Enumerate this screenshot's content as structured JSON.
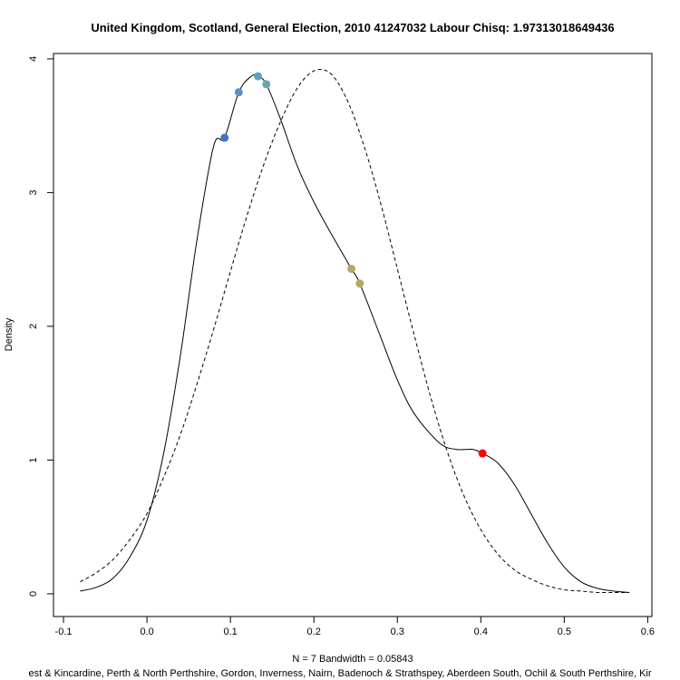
{
  "chart_data": {
    "type": "line",
    "title": "United Kingdom, Scotland, General Election, 2010 41247032 Labour Chisq: 1.97313018649436",
    "xlabel": "N = 7   Bandwidth = 0.05843",
    "subxlabel": "est & Kincardine, Perth & North Perthshire, Gordon, Inverness, Nairn, Badenoch & Strathspey, Aberdeen South, Ochil & South Perthshire, Kir",
    "ylabel": "Density",
    "xlim": [
      -0.112,
      0.605
    ],
    "ylim": [
      -0.17,
      4.04
    ],
    "xticks": [
      "-0.1",
      "0.0",
      "0.1",
      "0.2",
      "0.3",
      "0.4",
      "0.5",
      "0.6"
    ],
    "xtick_values": [
      -0.1,
      0.0,
      0.1,
      0.2,
      0.3,
      0.4,
      0.5,
      0.6
    ],
    "yticks": [
      "0",
      "1",
      "2",
      "3",
      "4"
    ],
    "ytick_values": [
      0,
      1,
      2,
      3,
      4
    ],
    "grid": false,
    "series": [
      {
        "style": "solid",
        "color": "#000000",
        "x": [
          -0.08,
          -0.06,
          -0.04,
          -0.02,
          0.0,
          0.02,
          0.04,
          0.06,
          0.08,
          0.093,
          0.11,
          0.125,
          0.133,
          0.143,
          0.16,
          0.18,
          0.2,
          0.22,
          0.245,
          0.255,
          0.28,
          0.3,
          0.32,
          0.35,
          0.37,
          0.39,
          0.402,
          0.42,
          0.44,
          0.46,
          0.48,
          0.5,
          0.52,
          0.54,
          0.56,
          0.578
        ],
        "y": [
          0.02,
          0.05,
          0.12,
          0.28,
          0.55,
          1.05,
          1.78,
          2.65,
          3.35,
          3.41,
          3.75,
          3.87,
          3.87,
          3.81,
          3.55,
          3.2,
          2.93,
          2.7,
          2.43,
          2.32,
          1.92,
          1.6,
          1.35,
          1.13,
          1.08,
          1.08,
          1.05,
          0.98,
          0.82,
          0.6,
          0.38,
          0.2,
          0.09,
          0.04,
          0.02,
          0.01
        ]
      },
      {
        "style": "dashed",
        "color": "#000000",
        "x": [
          -0.08,
          -0.06,
          -0.04,
          -0.02,
          0.0,
          0.02,
          0.04,
          0.06,
          0.08,
          0.1,
          0.12,
          0.14,
          0.16,
          0.18,
          0.2,
          0.22,
          0.24,
          0.26,
          0.28,
          0.3,
          0.32,
          0.34,
          0.36,
          0.38,
          0.4,
          0.42,
          0.44,
          0.46,
          0.48,
          0.5,
          0.52,
          0.54,
          0.56,
          0.578
        ],
        "y": [
          0.09,
          0.16,
          0.26,
          0.41,
          0.6,
          0.87,
          1.19,
          1.57,
          1.98,
          2.41,
          2.83,
          3.21,
          3.53,
          3.78,
          3.91,
          3.89,
          3.69,
          3.35,
          2.92,
          2.43,
          1.94,
          1.47,
          1.06,
          0.73,
          0.48,
          0.3,
          0.18,
          0.11,
          0.06,
          0.03,
          0.02,
          0.01,
          0.01,
          0.01
        ]
      }
    ],
    "points": [
      {
        "x": 0.093,
        "y": 3.41,
        "color": "#4472c4"
      },
      {
        "x": 0.11,
        "y": 3.75,
        "color": "#5b8fc7"
      },
      {
        "x": 0.133,
        "y": 3.87,
        "color": "#5fa2b8"
      },
      {
        "x": 0.143,
        "y": 3.81,
        "color": "#6aa6b0"
      },
      {
        "x": 0.245,
        "y": 2.43,
        "color": "#b5a865"
      },
      {
        "x": 0.255,
        "y": 2.32,
        "color": "#b5a865"
      },
      {
        "x": 0.402,
        "y": 1.05,
        "color": "#ff0000"
      }
    ]
  }
}
